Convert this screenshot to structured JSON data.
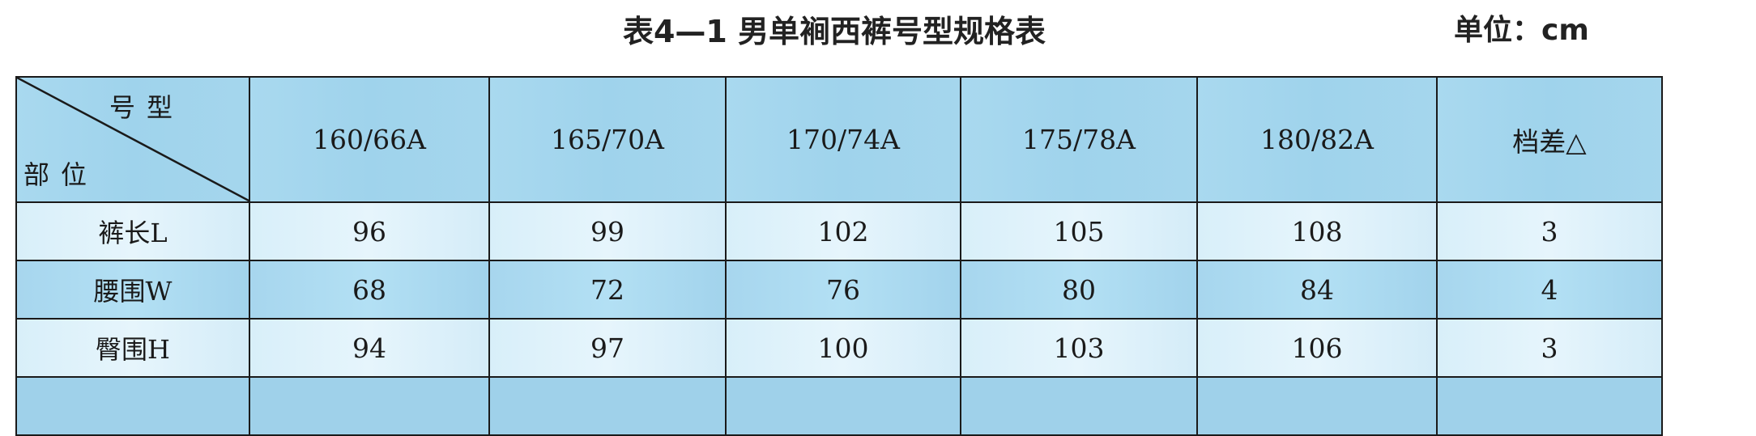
{
  "title": "表4—1  男单裥西裤号型规格表",
  "unit": "单位：cm",
  "table": {
    "corner_top": "号型",
    "corner_bottom": "部位",
    "columns": [
      "160/66A",
      "165/70A",
      "170/74A",
      "175/78A",
      "180/82A",
      "档差△"
    ],
    "rows": [
      {
        "label": "裤长L",
        "values": [
          "96",
          "99",
          "102",
          "105",
          "108",
          "3"
        ]
      },
      {
        "label": "腰围W",
        "values": [
          "68",
          "72",
          "76",
          "80",
          "84",
          "4"
        ]
      },
      {
        "label": "臀围H",
        "values": [
          "94",
          "97",
          "100",
          "103",
          "106",
          "3"
        ]
      }
    ]
  },
  "colors": {
    "header_bg": "#a9d9ef",
    "light_row_bg": "#e0f2fb",
    "mid_row_bg": "#aedcf1",
    "border": "#1a1a1a"
  }
}
